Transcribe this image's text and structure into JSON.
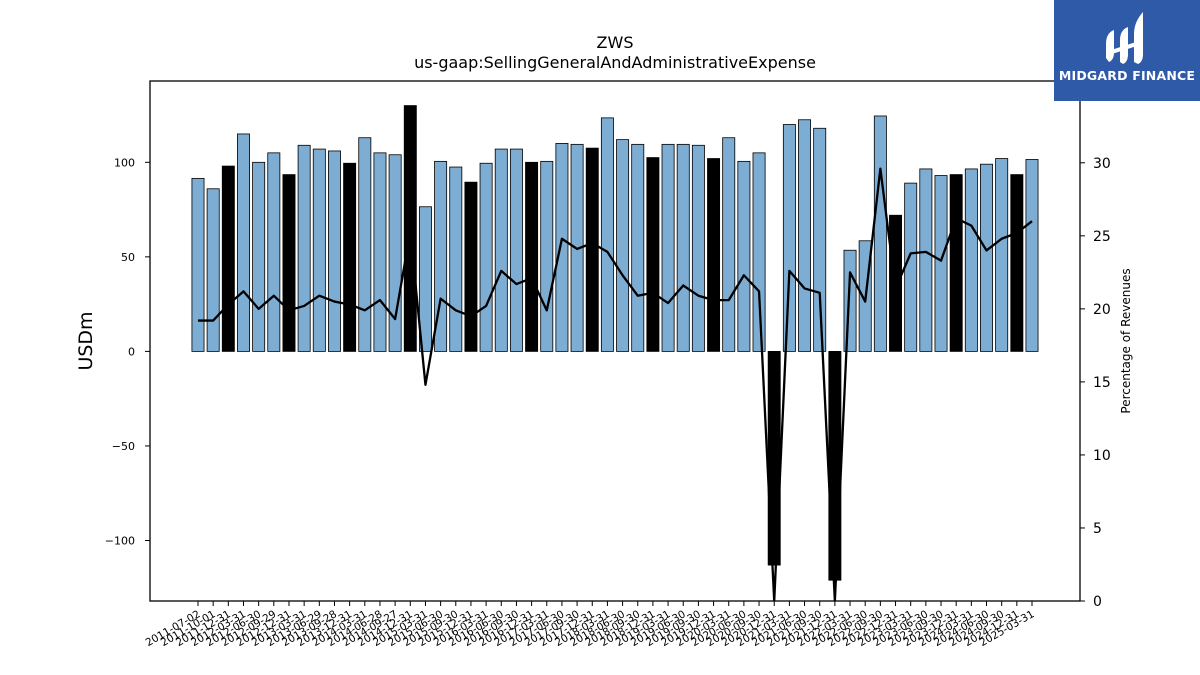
{
  "chart_data": {
    "type": "bar",
    "title": "ZWS",
    "subtitle": "us-gaap:SellingGeneralAndAdministrativeExpense",
    "ylabel": "USDm",
    "y2label": "Percentage of Revenues",
    "ylim": [
      -132,
      143
    ],
    "y2lim": [
      0,
      35.6
    ],
    "yticks": [
      -100,
      -50,
      0,
      50,
      100
    ],
    "y2ticks": [
      0,
      5,
      10,
      15,
      20,
      25,
      30
    ],
    "grid": false,
    "colors": {
      "quarter_bar": "#7eadd4",
      "annual_bar": "#000000",
      "line": "#000000"
    },
    "categories": [
      "2011-07-02",
      "2011-10-01",
      "2011-12-31",
      "2012-03-31",
      "2012-06-30",
      "2012-09-29",
      "2012-12-31",
      "2013-03-31",
      "2013-06-29",
      "2013-09-28",
      "2013-12-31",
      "2014-03-31",
      "2014-06-28",
      "2014-09-27",
      "2014-12-31",
      "2015-03-31",
      "2015-06-30",
      "2015-09-30",
      "2015-12-31",
      "2016-03-31",
      "2016-06-30",
      "2016-09-30",
      "2016-12-31",
      "2017-03-31",
      "2017-06-30",
      "2017-09-30",
      "2017-12-31",
      "2018-03-31",
      "2018-06-30",
      "2018-09-30",
      "2018-12-31",
      "2019-03-31",
      "2019-06-30",
      "2019-09-30",
      "2019-12-31",
      "2020-03-31",
      "2020-06-30",
      "2020-09-30",
      "2020-12-31",
      "2021-03-31",
      "2021-06-30",
      "2021-09-30",
      "2021-12-31",
      "2022-03-31",
      "2022-06-30",
      "2022-09-30",
      "2022-12-31",
      "2023-03-31",
      "2023-06-30",
      "2023-09-30",
      "2023-12-31",
      "2024-03-31",
      "2024-06-30",
      "2024-09-30",
      "2024-12-31",
      "2025-03-31"
    ],
    "series": [
      {
        "kind": "bar",
        "values": [
          91.5,
          86,
          98,
          115,
          100,
          105,
          93.5,
          109,
          107,
          106,
          99.5,
          113,
          105,
          104,
          130,
          76.5,
          100.5,
          97.5,
          89.5,
          99.5,
          107,
          107,
          100,
          100.5,
          110,
          109.5,
          107.5,
          123.5,
          112,
          109.5,
          102.5,
          109.5,
          109.5,
          109,
          102,
          113,
          100.5,
          105,
          -113,
          120,
          122.5,
          118,
          -121,
          53.5,
          58.5,
          124.5,
          72,
          89,
          96.5,
          93,
          93.5,
          96.5,
          99,
          102,
          93.5,
          101.5
        ],
        "annual": [
          false,
          false,
          true,
          false,
          false,
          false,
          true,
          false,
          false,
          false,
          true,
          false,
          false,
          false,
          true,
          false,
          false,
          false,
          true,
          false,
          false,
          false,
          true,
          false,
          false,
          false,
          true,
          false,
          false,
          false,
          true,
          false,
          false,
          false,
          true,
          false,
          false,
          false,
          true,
          false,
          false,
          false,
          true,
          false,
          false,
          false,
          true,
          false,
          false,
          false,
          true,
          false,
          false,
          false,
          true,
          false
        ]
      },
      {
        "kind": "line",
        "axis": "right",
        "values": [
          19.2,
          19.2,
          20.3,
          21.2,
          20.0,
          20.9,
          19.9,
          20.2,
          20.9,
          20.5,
          20.3,
          19.9,
          20.6,
          19.3,
          25.3,
          14.8,
          20.7,
          19.9,
          19.5,
          20.2,
          22.6,
          21.7,
          22.1,
          19.9,
          24.8,
          24.1,
          24.5,
          23.9,
          22.3,
          20.9,
          21.1,
          20.4,
          21.6,
          20.9,
          20.6,
          20.6,
          22.3,
          21.2,
          0,
          22.6,
          21.4,
          21.1,
          0,
          22.5,
          20.5,
          29.6,
          21.4,
          23.8,
          23.9,
          23.3,
          26.2,
          25.7,
          24.0,
          24.8,
          25.2,
          26.0
        ]
      }
    ]
  },
  "logo": {
    "text": "MIDGARD FINANCE"
  }
}
